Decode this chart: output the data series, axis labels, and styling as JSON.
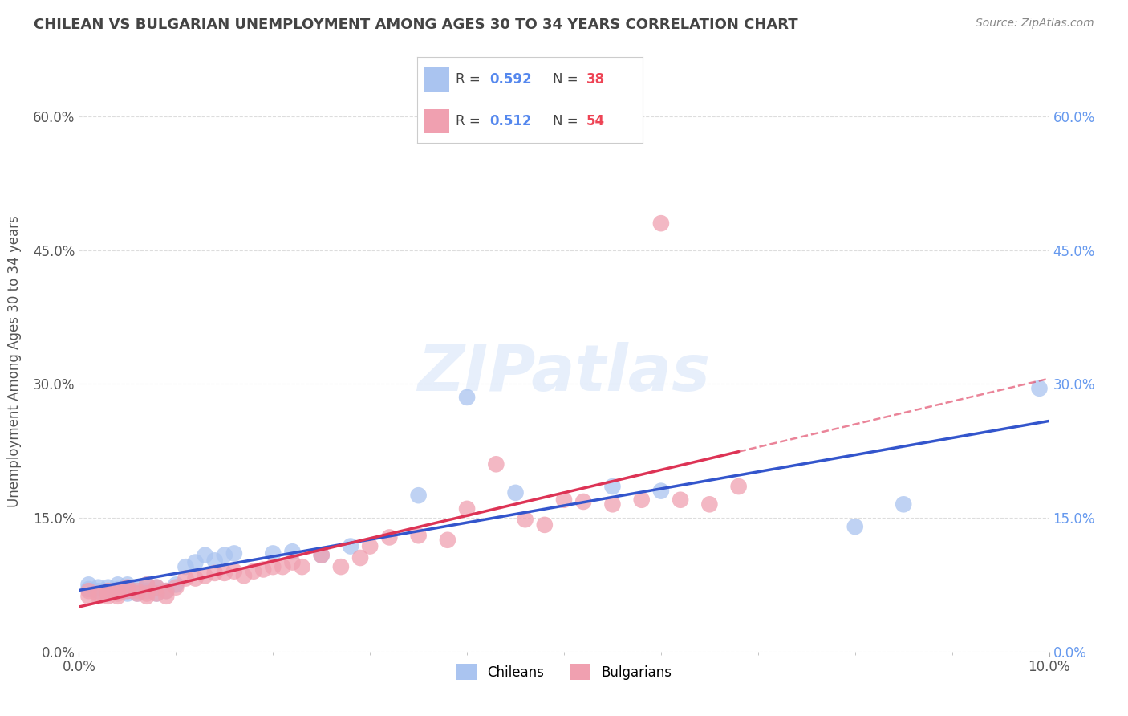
{
  "title": "CHILEAN VS BULGARIAN UNEMPLOYMENT AMONG AGES 30 TO 34 YEARS CORRELATION CHART",
  "source": "Source: ZipAtlas.com",
  "ylabel": "Unemployment Among Ages 30 to 34 years",
  "xlim": [
    0.0,
    0.1
  ],
  "ylim": [
    0.0,
    0.65
  ],
  "xticks": [
    0.0,
    0.1
  ],
  "yticks": [
    0.0,
    0.15,
    0.3,
    0.45,
    0.6
  ],
  "ytick_labels": [
    "0.0%",
    "15.0%",
    "30.0%",
    "45.0%",
    "60.0%"
  ],
  "legend_r_chileans": "0.592",
  "legend_n_chileans": "38",
  "legend_r_bulgarians": "0.512",
  "legend_n_bulgarians": "54",
  "chilean_color": "#aac4f0",
  "bulgarian_color": "#f0a0b0",
  "chilean_line_color": "#3355cc",
  "bulgarian_line_color": "#dd3355",
  "right_tick_color": "#6699ee",
  "background_color": "#ffffff",
  "grid_color": "#dddddd",
  "chileans_x": [
    0.001,
    0.001,
    0.002,
    0.002,
    0.003,
    0.003,
    0.003,
    0.004,
    0.004,
    0.005,
    0.005,
    0.005,
    0.006,
    0.006,
    0.007,
    0.007,
    0.008,
    0.008,
    0.009,
    0.01,
    0.011,
    0.012,
    0.013,
    0.014,
    0.015,
    0.016,
    0.02,
    0.022,
    0.025,
    0.028,
    0.035,
    0.04,
    0.045,
    0.055,
    0.06,
    0.08,
    0.085,
    0.099
  ],
  "chileans_y": [
    0.07,
    0.075,
    0.068,
    0.072,
    0.068,
    0.072,
    0.065,
    0.07,
    0.075,
    0.065,
    0.068,
    0.075,
    0.065,
    0.072,
    0.068,
    0.075,
    0.072,
    0.065,
    0.068,
    0.075,
    0.095,
    0.1,
    0.108,
    0.102,
    0.108,
    0.11,
    0.11,
    0.112,
    0.108,
    0.118,
    0.175,
    0.285,
    0.178,
    0.185,
    0.18,
    0.14,
    0.165,
    0.295
  ],
  "bulgarians_x": [
    0.001,
    0.001,
    0.002,
    0.002,
    0.003,
    0.003,
    0.003,
    0.004,
    0.004,
    0.004,
    0.005,
    0.005,
    0.006,
    0.006,
    0.007,
    0.007,
    0.007,
    0.008,
    0.008,
    0.009,
    0.009,
    0.01,
    0.011,
    0.012,
    0.013,
    0.014,
    0.015,
    0.016,
    0.017,
    0.018,
    0.019,
    0.02,
    0.021,
    0.022,
    0.023,
    0.025,
    0.027,
    0.029,
    0.03,
    0.032,
    0.035,
    0.038,
    0.04,
    0.043,
    0.046,
    0.048,
    0.05,
    0.052,
    0.055,
    0.058,
    0.06,
    0.062,
    0.065,
    0.068
  ],
  "bulgarians_y": [
    0.062,
    0.068,
    0.062,
    0.065,
    0.062,
    0.065,
    0.068,
    0.062,
    0.065,
    0.068,
    0.068,
    0.072,
    0.065,
    0.068,
    0.062,
    0.065,
    0.075,
    0.065,
    0.072,
    0.062,
    0.068,
    0.072,
    0.082,
    0.082,
    0.085,
    0.088,
    0.088,
    0.09,
    0.085,
    0.09,
    0.092,
    0.095,
    0.095,
    0.1,
    0.095,
    0.108,
    0.095,
    0.105,
    0.118,
    0.128,
    0.13,
    0.125,
    0.16,
    0.21,
    0.148,
    0.142,
    0.17,
    0.168,
    0.165,
    0.17,
    0.48,
    0.17,
    0.165,
    0.185
  ],
  "watermark_text": "ZIPatlas",
  "watermark_color": "#d0e0f8",
  "watermark_alpha": 0.5
}
